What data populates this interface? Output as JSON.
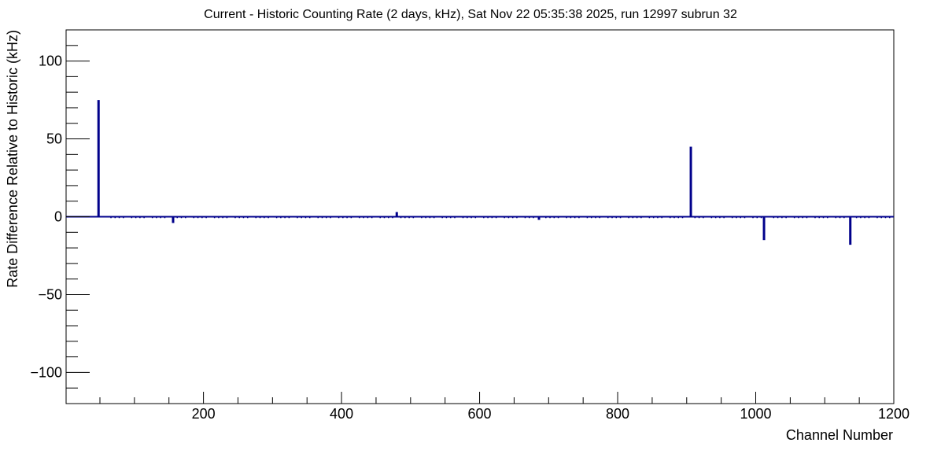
{
  "chart_data": {
    "type": "bar",
    "title": "Current - Historic Counting Rate (2 days, kHz), Sat Nov 22 05:35:38 2025, run 12997 subrun 32",
    "xlabel": "Channel Number",
    "ylabel": "Rate Difference Relative to Historic (kHz)",
    "xlim": [
      1,
      1200
    ],
    "ylim": [
      -120,
      120
    ],
    "x_ticks": [
      200,
      400,
      600,
      800,
      1000,
      1200
    ],
    "y_ticks": [
      -100,
      -50,
      0,
      50,
      100
    ],
    "x_tick_labels": [
      "200",
      "400",
      "600",
      "800",
      "1000",
      "1200"
    ],
    "y_tick_labels": [
      "−100",
      "−50",
      "0",
      "50",
      "100"
    ],
    "grid": false,
    "legend": "none",
    "color": "#00008b",
    "series": [
      {
        "x": [
          48,
          156,
          480,
          686,
          906,
          1012,
          1137
        ],
        "values": [
          75,
          -4,
          3,
          -2,
          45,
          -15,
          -18
        ]
      }
    ]
  }
}
